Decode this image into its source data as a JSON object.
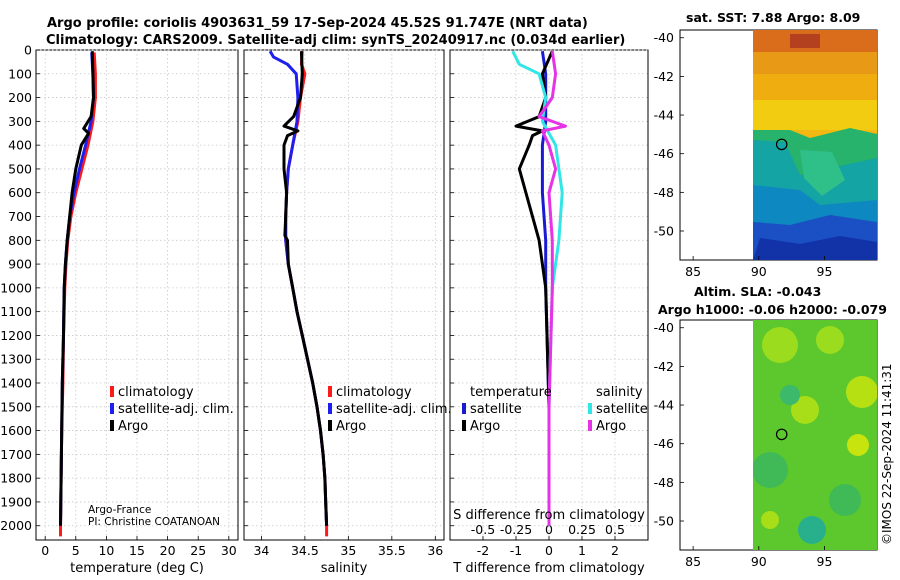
{
  "header": {
    "line1": "Argo profile: coriolis 4903631_59 17-Sep-2024 45.52S 91.747E (NRT data)",
    "line2": "Climatology: CARS2009. Satellite-adj clim: synTS_20240917.nc (0.034d earlier)"
  },
  "credit": {
    "line1": "Argo-France",
    "line2": "PI: Christine COATANOAN"
  },
  "stamp": "©IMOS 22-Sep-2024 11:41:31",
  "colors": {
    "climatology": "#ff1a1a",
    "satellite_adj": "#1e1ef0",
    "argo": "#000000",
    "t_satellite": "#1a1ad0",
    "s_satellite": "#33e6e6",
    "s_argo": "#e633e6"
  },
  "chart_data": [
    {
      "type": "line",
      "name": "temperature-profile",
      "xlabel": "temperature (deg C)",
      "xlim": [
        -1.5,
        31.5
      ],
      "xticks": [
        "0",
        "5",
        "10",
        "15",
        "20",
        "25",
        "30"
      ],
      "ylim": [
        2060,
        0
      ],
      "yticks": [
        "0",
        "100",
        "200",
        "300",
        "400",
        "500",
        "600",
        "700",
        "800",
        "900",
        "1000",
        "1100",
        "1200",
        "1300",
        "1400",
        "1500",
        "1600",
        "1700",
        "1800",
        "1900",
        "2000"
      ],
      "grid": true,
      "legend": {
        "position": "bottom-right",
        "entries": [
          "climatology",
          "satellite-adj. clim.",
          "Argo"
        ]
      },
      "series": [
        {
          "name": "climatology",
          "color": "#ff1a1a",
          "points": [
            [
              8.0,
              10
            ],
            [
              8.2,
              100
            ],
            [
              8.2,
              200
            ],
            [
              7.8,
              300
            ],
            [
              7.0,
              400
            ],
            [
              6.0,
              500
            ],
            [
              5.0,
              600
            ],
            [
              4.2,
              700
            ],
            [
              3.7,
              800
            ],
            [
              3.4,
              900
            ],
            [
              3.2,
              1000
            ],
            [
              3.0,
              1200
            ],
            [
              2.9,
              1400
            ],
            [
              2.7,
              1600
            ],
            [
              2.6,
              1800
            ],
            [
              2.5,
              2000
            ],
            [
              2.5,
              2045
            ]
          ]
        },
        {
          "name": "satellite-adj. clim.",
          "color": "#1e1ef0",
          "points": [
            [
              7.6,
              10
            ],
            [
              7.8,
              100
            ],
            [
              7.9,
              200
            ],
            [
              7.5,
              300
            ],
            [
              6.6,
              400
            ],
            [
              5.6,
              500
            ],
            [
              4.7,
              600
            ],
            [
              4.0,
              700
            ],
            [
              3.6,
              800
            ],
            [
              3.3,
              900
            ],
            [
              3.1,
              1000
            ],
            [
              3.0,
              1200
            ],
            [
              2.8,
              1400
            ],
            [
              2.7,
              1600
            ],
            [
              2.6,
              1800
            ],
            [
              2.5,
              2000
            ]
          ]
        },
        {
          "name": "Argo",
          "color": "#000000",
          "points": [
            [
              7.7,
              5
            ],
            [
              7.8,
              100
            ],
            [
              7.9,
              200
            ],
            [
              7.5,
              280
            ],
            [
              6.3,
              330
            ],
            [
              7.1,
              350
            ],
            [
              5.9,
              400
            ],
            [
              5.0,
              500
            ],
            [
              4.4,
              600
            ],
            [
              4.0,
              700
            ],
            [
              3.6,
              800
            ],
            [
              3.3,
              900
            ],
            [
              3.1,
              1000
            ],
            [
              3.0,
              1200
            ],
            [
              2.8,
              1400
            ],
            [
              2.7,
              1600
            ],
            [
              2.6,
              1800
            ],
            [
              2.5,
              2000
            ]
          ]
        }
      ]
    },
    {
      "type": "line",
      "name": "salinity-profile",
      "xlabel": "salinity",
      "xlim": [
        33.8,
        36.1
      ],
      "xticks": [
        "34",
        "34.5",
        "35",
        "35.5",
        "36"
      ],
      "ylim": [
        2060,
        0
      ],
      "grid": true,
      "legend": {
        "position": "bottom-right",
        "entries": [
          "climatology",
          "satellite-adj. clim.",
          "Argo"
        ]
      },
      "series": [
        {
          "name": "climatology",
          "color": "#ff1a1a",
          "points": [
            [
              34.47,
              5
            ],
            [
              34.46,
              60
            ],
            [
              34.5,
              100
            ],
            [
              34.45,
              200
            ],
            [
              34.42,
              300
            ],
            [
              34.36,
              400
            ],
            [
              34.31,
              500
            ],
            [
              34.29,
              600
            ],
            [
              34.28,
              700
            ],
            [
              34.28,
              800
            ],
            [
              34.31,
              900
            ],
            [
              34.36,
              1000
            ],
            [
              34.41,
              1100
            ],
            [
              34.47,
              1200
            ],
            [
              34.53,
              1300
            ],
            [
              34.59,
              1400
            ],
            [
              34.64,
              1500
            ],
            [
              34.68,
              1600
            ],
            [
              34.71,
              1700
            ],
            [
              34.73,
              1800
            ],
            [
              34.74,
              1900
            ],
            [
              34.75,
              2000
            ],
            [
              34.75,
              2045
            ]
          ]
        },
        {
          "name": "satellite-adj. clim.",
          "color": "#1e1ef0",
          "points": [
            [
              34.1,
              5
            ],
            [
              34.14,
              30
            ],
            [
              34.3,
              60
            ],
            [
              34.4,
              100
            ],
            [
              34.42,
              200
            ],
            [
              34.41,
              300
            ],
            [
              34.36,
              400
            ],
            [
              34.31,
              500
            ],
            [
              34.29,
              600
            ],
            [
              34.28,
              700
            ],
            [
              34.28,
              800
            ],
            [
              34.31,
              900
            ],
            [
              34.36,
              1000
            ],
            [
              34.41,
              1100
            ],
            [
              34.47,
              1200
            ],
            [
              34.53,
              1300
            ],
            [
              34.59,
              1400
            ],
            [
              34.64,
              1500
            ],
            [
              34.68,
              1600
            ],
            [
              34.71,
              1700
            ],
            [
              34.73,
              1800
            ],
            [
              34.74,
              1900
            ],
            [
              34.75,
              2000
            ]
          ]
        },
        {
          "name": "Argo",
          "color": "#000000",
          "points": [
            [
              34.46,
              5
            ],
            [
              34.47,
              100
            ],
            [
              34.45,
              200
            ],
            [
              34.37,
              280
            ],
            [
              34.26,
              320
            ],
            [
              34.42,
              340
            ],
            [
              34.3,
              360
            ],
            [
              34.26,
              400
            ],
            [
              34.26,
              500
            ],
            [
              34.29,
              600
            ],
            [
              34.28,
              700
            ],
            [
              34.27,
              780
            ],
            [
              34.3,
              800
            ],
            [
              34.31,
              900
            ],
            [
              34.36,
              1000
            ],
            [
              34.41,
              1100
            ],
            [
              34.47,
              1200
            ],
            [
              34.53,
              1300
            ],
            [
              34.59,
              1400
            ],
            [
              34.64,
              1500
            ],
            [
              34.68,
              1600
            ],
            [
              34.71,
              1700
            ],
            [
              34.73,
              1800
            ],
            [
              34.74,
              1900
            ],
            [
              34.75,
              2000
            ]
          ]
        }
      ]
    },
    {
      "type": "line",
      "name": "difference-profile",
      "xlabel": "T difference from climatology",
      "xlabel_top": "S difference from climatology",
      "xlim": [
        -3.0,
        3.0
      ],
      "xticks": [
        "-2",
        "-1",
        "0",
        "1",
        "2"
      ],
      "xticks_top": [
        "-0.5",
        "-0.25",
        "0",
        "0.25",
        "0.5"
      ],
      "ylim": [
        2060,
        0
      ],
      "grid": true,
      "legend": {
        "position": "bottom",
        "group_left": "temperature",
        "group_right": "salinity",
        "entries_left": [
          "satellite",
          "Argo"
        ],
        "entries_right": [
          "satellite",
          "Argo"
        ]
      },
      "series": [
        {
          "name": "temperature satellite",
          "color": "#1a1ad0",
          "points": [
            [
              -0.2,
              5
            ],
            [
              -0.1,
              100
            ],
            [
              -0.1,
              200
            ],
            [
              -0.1,
              300
            ],
            [
              -0.2,
              400
            ],
            [
              -0.2,
              600
            ],
            [
              -0.1,
              800
            ],
            [
              -0.1,
              1000
            ],
            [
              0.0,
              1500
            ],
            [
              0.0,
              2000
            ]
          ]
        },
        {
          "name": "temperature Argo",
          "color": "#000000",
          "points": [
            [
              0.1,
              5
            ],
            [
              -0.2,
              100
            ],
            [
              -0.1,
              200
            ],
            [
              -0.3,
              280
            ],
            [
              -1.0,
              320
            ],
            [
              -0.2,
              340
            ],
            [
              -0.5,
              360
            ],
            [
              -0.6,
              400
            ],
            [
              -0.9,
              500
            ],
            [
              -0.6,
              650
            ],
            [
              -0.3,
              800
            ],
            [
              -0.1,
              1000
            ],
            [
              0.0,
              1500
            ],
            [
              0.0,
              2000
            ]
          ]
        },
        {
          "name": "salinity satellite",
          "color": "#33e6e6",
          "points": [
            [
              -1.1,
              5
            ],
            [
              -0.9,
              60
            ],
            [
              -0.3,
              100
            ],
            [
              -0.1,
              200
            ],
            [
              -0.2,
              300
            ],
            [
              0.2,
              400
            ],
            [
              0.4,
              600
            ],
            [
              0.3,
              800
            ],
            [
              0.1,
              1000
            ],
            [
              0.0,
              1500
            ],
            [
              0.0,
              2000
            ]
          ]
        },
        {
          "name": "salinity Argo",
          "color": "#e633e6",
          "points": [
            [
              0.1,
              5
            ],
            [
              0.2,
              100
            ],
            [
              0.1,
              200
            ],
            [
              -0.3,
              280
            ],
            [
              0.5,
              320
            ],
            [
              -0.2,
              340
            ],
            [
              0.0,
              400
            ],
            [
              0.2,
              500
            ],
            [
              0.0,
              600
            ],
            [
              0.1,
              800
            ],
            [
              0.1,
              1000
            ],
            [
              0.0,
              1500
            ],
            [
              0.0,
              2000
            ]
          ]
        }
      ]
    },
    {
      "type": "heatmap",
      "name": "sst-map",
      "title": "sat. SST: 7.88 Argo: 8.09",
      "xlim": [
        84,
        99
      ],
      "ylim": [
        -51.5,
        -39.6
      ],
      "xticks": [
        "85",
        "90",
        "95"
      ],
      "yticks": [
        "-40",
        "-42",
        "-44",
        "-46",
        "-48",
        "-50"
      ],
      "marker": [
        91.747,
        -45.52
      ]
    },
    {
      "type": "heatmap",
      "name": "sla-map",
      "title": "Altim. SLA: -0.043",
      "subtitle": "Argo h1000: -0.06 h2000: -0.079",
      "xlim": [
        84,
        99
      ],
      "ylim": [
        -51.5,
        -39.6
      ],
      "xticks": [
        "85",
        "90",
        "95"
      ],
      "yticks": [
        "-40",
        "-42",
        "-44",
        "-46",
        "-48",
        "-50"
      ],
      "marker": [
        91.747,
        -45.52
      ]
    }
  ]
}
